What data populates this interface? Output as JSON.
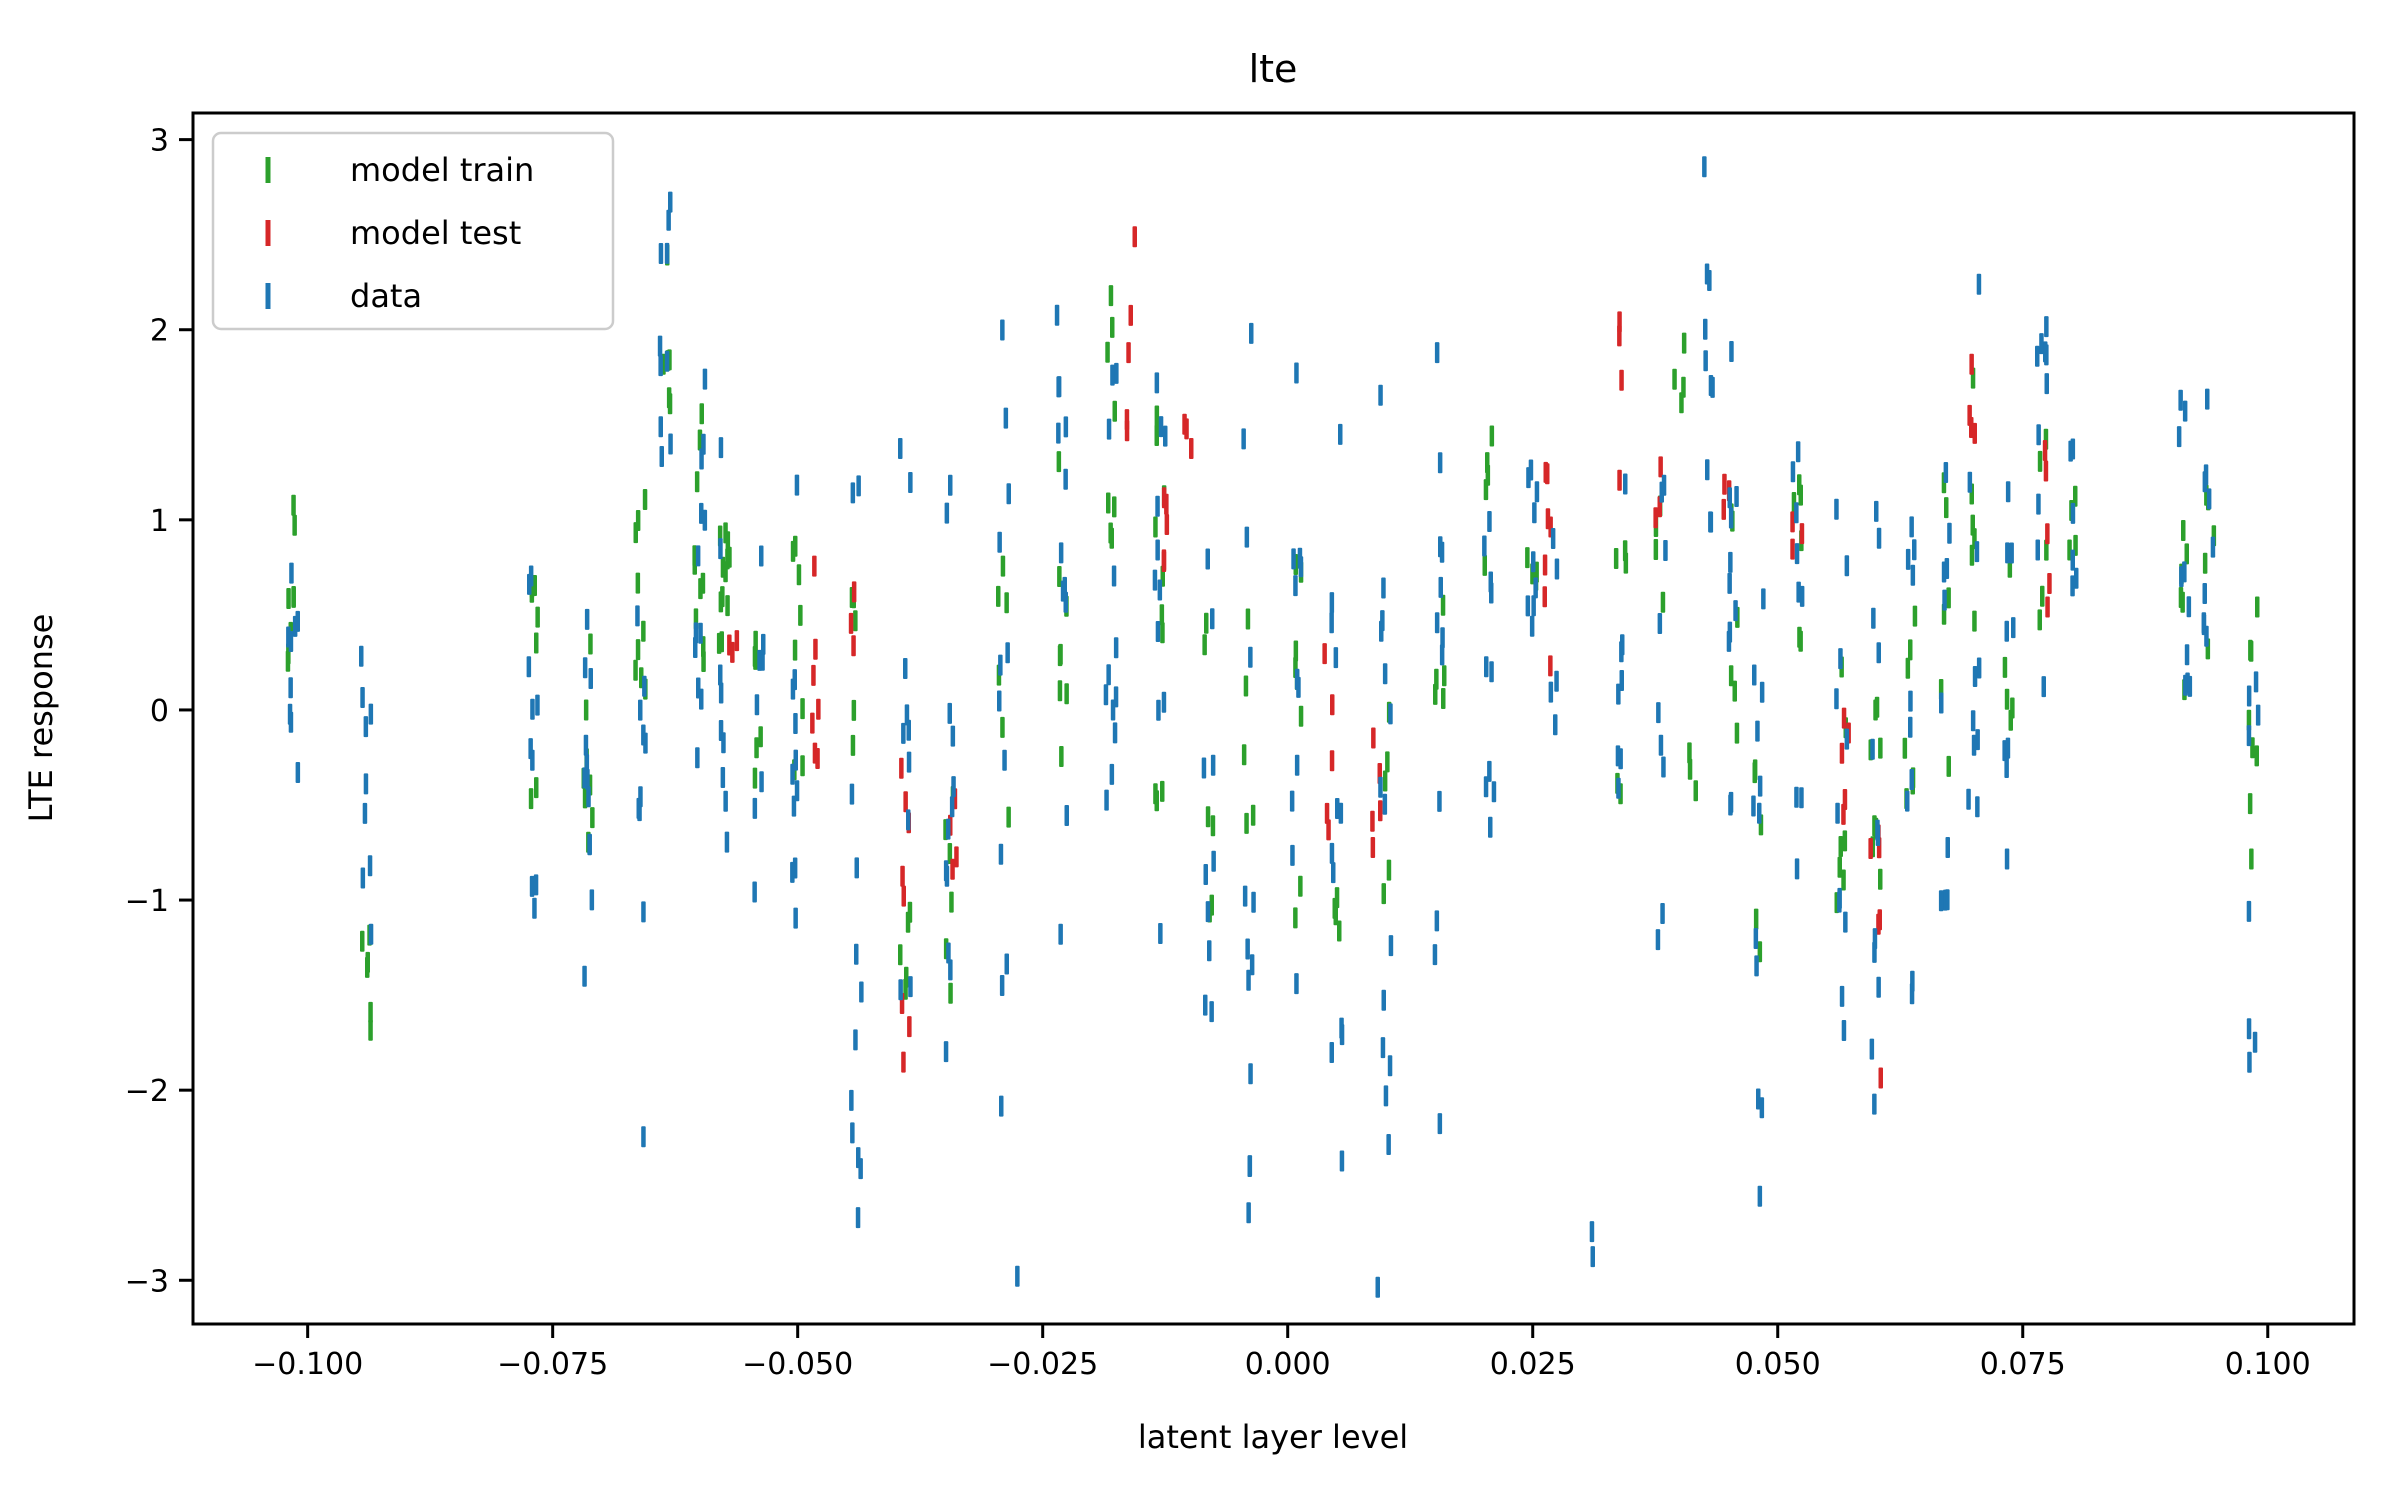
{
  "figure": {
    "title": "lte"
  },
  "chart_data": {
    "type": "scatter",
    "marker_style": "vertical-dash",
    "title": "lte",
    "xlabel": "latent layer level",
    "ylabel": "LTE response",
    "xlim": [
      -0.1117,
      0.1088
    ],
    "ylim": [
      -3.23,
      3.14
    ],
    "xticks": [
      -0.1,
      -0.075,
      -0.05,
      -0.025,
      0.0,
      0.025,
      0.05,
      0.075,
      0.1
    ],
    "xtick_labels": [
      "−0.100",
      "−0.075",
      "−0.050",
      "−0.025",
      "0.000",
      "0.025",
      "0.050",
      "0.075",
      "0.100"
    ],
    "yticks": [
      3,
      2,
      1,
      0,
      -1,
      -2,
      -3
    ],
    "ytick_labels": [
      "3",
      "2",
      "1",
      "0",
      "−1",
      "−2",
      "−3"
    ],
    "grid": false,
    "legend": {
      "position": "upper left",
      "entries": [
        "model train",
        "model test",
        "data"
      ]
    },
    "band_format": [
      "x_center",
      "y_min",
      "y_max",
      "count"
    ],
    "series": [
      {
        "name": "model train",
        "color": "#2ca02c",
        "bands": [
          [
            -0.1015,
            0.25,
            1.2,
            8
          ],
          [
            -0.094,
            -1.7,
            -1.1,
            6
          ],
          [
            -0.077,
            -0.6,
            0.85,
            7
          ],
          [
            -0.0715,
            -0.9,
            0.35,
            8
          ],
          [
            -0.066,
            -0.5,
            1.45,
            9
          ],
          [
            -0.0635,
            1.6,
            2.55,
            6
          ],
          [
            -0.06,
            0.2,
            1.7,
            10
          ],
          [
            -0.0575,
            0.35,
            0.95,
            12
          ],
          [
            -0.054,
            -0.4,
            0.8,
            6
          ],
          [
            -0.05,
            -0.5,
            1.1,
            8
          ],
          [
            -0.044,
            -0.3,
            0.6,
            5
          ],
          [
            -0.039,
            -1.6,
            -0.9,
            5
          ],
          [
            -0.0345,
            -1.5,
            -0.35,
            6
          ],
          [
            -0.029,
            -0.9,
            0.9,
            6
          ],
          [
            -0.023,
            -0.45,
            1.35,
            8
          ],
          [
            -0.018,
            0.6,
            2.2,
            8
          ],
          [
            -0.013,
            -0.5,
            2.2,
            10
          ],
          [
            -0.008,
            -1.3,
            0.8,
            6
          ],
          [
            -0.004,
            -1.1,
            0.6,
            5
          ],
          [
            0.001,
            -1.5,
            0.85,
            8
          ],
          [
            0.005,
            -1.6,
            -0.8,
            4
          ],
          [
            0.01,
            -1.0,
            0.2,
            5
          ],
          [
            0.0155,
            -0.3,
            1.0,
            5
          ],
          [
            0.0205,
            0.6,
            1.45,
            5
          ],
          [
            0.025,
            0.3,
            0.9,
            4
          ],
          [
            0.034,
            -0.6,
            0.9,
            5
          ],
          [
            0.038,
            0.5,
            1.2,
            4
          ],
          [
            0.04,
            1.55,
            2.1,
            4
          ],
          [
            0.0415,
            -0.65,
            -0.1,
            3
          ],
          [
            0.0455,
            -0.4,
            1.15,
            6
          ],
          [
            0.048,
            -1.4,
            -0.3,
            5
          ],
          [
            0.052,
            0.35,
            1.3,
            6
          ],
          [
            0.0565,
            -1.1,
            0.4,
            7
          ],
          [
            0.06,
            -1.5,
            0.3,
            8
          ],
          [
            0.0635,
            -0.9,
            0.7,
            7
          ],
          [
            0.067,
            -0.3,
            1.2,
            6
          ],
          [
            0.07,
            0.4,
            1.9,
            6
          ],
          [
            0.0735,
            -0.3,
            1.1,
            5
          ],
          [
            0.077,
            0.4,
            1.5,
            5
          ],
          [
            0.08,
            0.8,
            1.45,
            4
          ],
          [
            0.0915,
            -0.1,
            1.1,
            6
          ],
          [
            0.094,
            0.2,
            1.45,
            5
          ],
          [
            0.0985,
            -1.55,
            0.6,
            8
          ]
        ]
      },
      {
        "name": "model test",
        "color": "#d62728",
        "bands": [
          [
            -0.0565,
            0.3,
            0.6,
            3
          ],
          [
            -0.048,
            -0.55,
            0.85,
            7
          ],
          [
            -0.0445,
            0.3,
            0.75,
            3
          ],
          [
            -0.039,
            -2.1,
            -0.3,
            8
          ],
          [
            -0.034,
            -0.85,
            -0.3,
            4
          ],
          [
            -0.016,
            1.35,
            2.5,
            5
          ],
          [
            -0.0125,
            0.3,
            1.8,
            5
          ],
          [
            -0.01,
            1.35,
            1.7,
            3
          ],
          [
            0.004,
            -0.95,
            0.35,
            5
          ],
          [
            0.009,
            -1.0,
            0.3,
            5
          ],
          [
            0.0265,
            0.0,
            1.5,
            7
          ],
          [
            0.034,
            1.2,
            2.05,
            4
          ],
          [
            0.0375,
            0.75,
            1.35,
            3
          ],
          [
            0.0445,
            1.0,
            1.3,
            3
          ],
          [
            0.052,
            0.75,
            1.05,
            3
          ],
          [
            0.057,
            -0.7,
            0.35,
            5
          ],
          [
            0.06,
            -1.95,
            -0.4,
            6
          ],
          [
            0.07,
            1.45,
            1.9,
            4
          ],
          [
            0.0775,
            0.45,
            1.5,
            5
          ]
        ]
      },
      {
        "name": "data",
        "color": "#1f77b4",
        "bands": [
          [
            -0.1015,
            -0.35,
            1.05,
            9
          ],
          [
            -0.094,
            -1.25,
            0.45,
            9
          ],
          [
            -0.077,
            -1.1,
            1.1,
            10
          ],
          [
            -0.0715,
            -1.9,
            1.05,
            12
          ],
          [
            -0.066,
            -1.35,
            0.95,
            9
          ],
          [
            -0.0655,
            -2.3,
            -2.2,
            1
          ],
          [
            -0.0635,
            1.3,
            2.8,
            10
          ],
          [
            -0.06,
            -0.35,
            2.2,
            12
          ],
          [
            -0.0575,
            -0.9,
            1.45,
            9
          ],
          [
            -0.054,
            -1.05,
            1.3,
            8
          ],
          [
            -0.05,
            -1.35,
            1.6,
            11
          ],
          [
            -0.044,
            -2.7,
            1.3,
            12
          ],
          [
            -0.039,
            -1.5,
            1.45,
            10
          ],
          [
            -0.0345,
            -2.05,
            1.5,
            12
          ],
          [
            -0.029,
            -2.45,
            2.05,
            12
          ],
          [
            -0.028,
            -3.05,
            -2.85,
            1
          ],
          [
            -0.023,
            -1.3,
            2.2,
            12
          ],
          [
            -0.018,
            -1.15,
            1.95,
            12
          ],
          [
            -0.013,
            -1.45,
            1.75,
            11
          ],
          [
            -0.008,
            -2.15,
            1.3,
            10
          ],
          [
            -0.004,
            -2.85,
            2.0,
            13
          ],
          [
            0.001,
            -1.45,
            2.1,
            11
          ],
          [
            0.005,
            -2.45,
            1.5,
            12
          ],
          [
            0.01,
            -2.9,
            2.0,
            14
          ],
          [
            0.0095,
            -3.05,
            -3.0,
            1
          ],
          [
            0.0155,
            -2.2,
            1.95,
            12
          ],
          [
            0.0205,
            -0.95,
            1.9,
            10
          ],
          [
            0.025,
            0.05,
            1.75,
            9
          ],
          [
            0.027,
            -0.1,
            1.0,
            5
          ],
          [
            0.0315,
            -2.95,
            -2.55,
            2
          ],
          [
            0.034,
            -0.8,
            1.3,
            8
          ],
          [
            0.038,
            -1.5,
            1.6,
            9
          ],
          [
            0.043,
            0.9,
            2.95,
            10
          ],
          [
            0.0455,
            -1.3,
            2.0,
            11
          ],
          [
            0.048,
            -2.75,
            1.3,
            12
          ],
          [
            0.052,
            -0.9,
            1.5,
            9
          ],
          [
            0.0565,
            -1.8,
            1.1,
            11
          ],
          [
            0.06,
            -2.25,
            1.2,
            12
          ],
          [
            0.0635,
            -1.6,
            1.0,
            10
          ],
          [
            0.067,
            -1.2,
            1.5,
            10
          ],
          [
            0.07,
            -0.6,
            2.3,
            10
          ],
          [
            0.0735,
            -0.9,
            1.3,
            9
          ],
          [
            0.077,
            -0.4,
            2.2,
            10
          ],
          [
            0.08,
            0.5,
            1.6,
            6
          ],
          [
            0.0915,
            -0.5,
            1.7,
            10
          ],
          [
            0.094,
            -0.6,
            1.9,
            9
          ],
          [
            0.0985,
            -2.0,
            0.3,
            8
          ]
        ]
      }
    ]
  }
}
